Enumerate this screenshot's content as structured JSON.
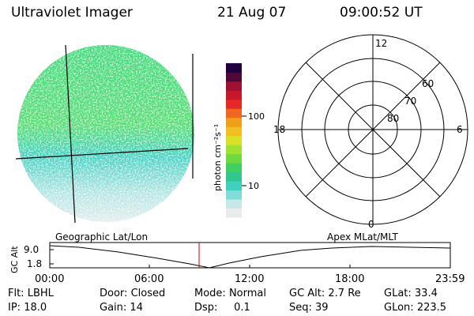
{
  "header": {
    "instrument": "Ultraviolet Imager",
    "date": "21 Aug 07",
    "time": "09:00:52 UT"
  },
  "colorbar": {
    "unit_label": "photon cm⁻²s⁻¹",
    "ticks": [
      "100",
      "10"
    ],
    "colors": [
      "#e8ecec",
      "#c8e8e8",
      "#80dcd8",
      "#40d0c0",
      "#30c890",
      "#40d060",
      "#70d840",
      "#a0e030",
      "#d8e028",
      "#f0c020",
      "#f0a018",
      "#f06820",
      "#e82828",
      "#c81828",
      "#a01030",
      "#500838",
      "#200040"
    ]
  },
  "polar_grid": {
    "latitudes": [
      "60",
      "70",
      "80"
    ],
    "local_times": [
      "12",
      "6",
      "0",
      "18"
    ]
  },
  "altitude_plot": {
    "ylabel": "GC Alt",
    "ytick_labels": [
      "9.0",
      "1.8"
    ],
    "left_caption": "Geographic Lat/Lon",
    "right_caption": "Apex MLat/MLT",
    "xtick_labels": [
      "00:00",
      "06:00",
      "12:00",
      "18:00",
      "23:59"
    ]
  },
  "status": {
    "row1": [
      {
        "label": "Flt:",
        "value": "LBHL"
      },
      {
        "label": "Door:",
        "value": "Closed"
      },
      {
        "label": "Mode:",
        "value": "Normal"
      },
      {
        "label": "GC Alt:",
        "value": "2.7 Re"
      },
      {
        "label": "GLat:",
        "value": "33.4"
      }
    ],
    "row2": [
      {
        "label": "IP:",
        "value": "18.0"
      },
      {
        "label": "Gain:",
        "value": "14"
      },
      {
        "label": "Dsp:",
        "value": "0.1"
      },
      {
        "label": "Seq:",
        "value": "39"
      },
      {
        "label": "GLon:",
        "value": "223.5"
      }
    ]
  }
}
